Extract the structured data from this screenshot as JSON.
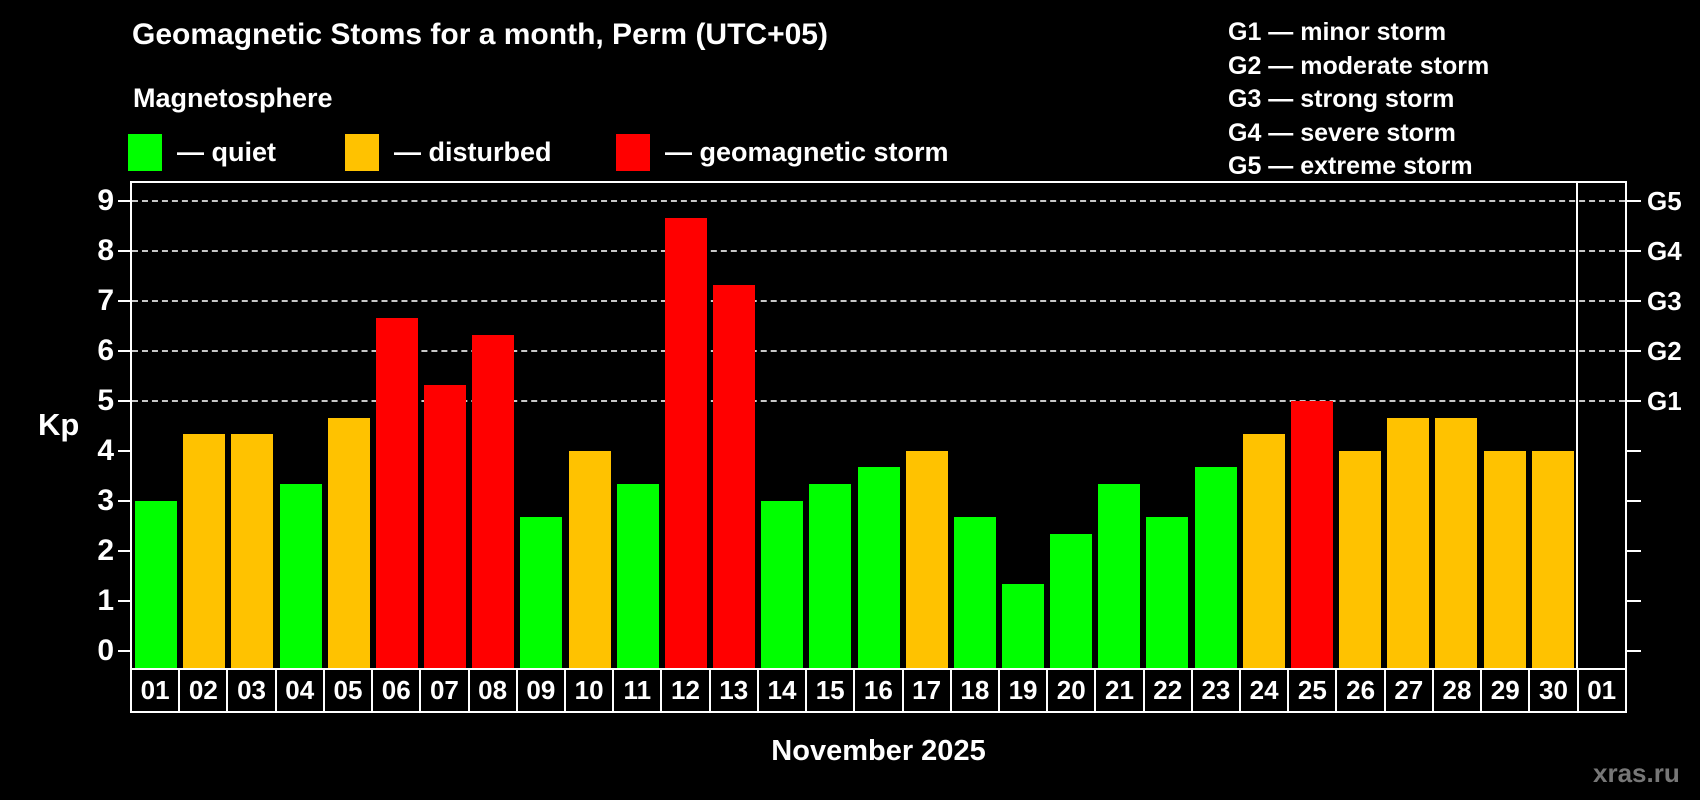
{
  "header": {
    "title": "Geomagnetic Stoms for a month, Perm (UTC+05)",
    "subtitle": "Magnetosphere"
  },
  "legend": {
    "items": [
      {
        "name": "quiet",
        "label": "— quiet",
        "color": "#00ff00"
      },
      {
        "name": "disturbed",
        "label": "— disturbed",
        "color": "#ffc200"
      },
      {
        "name": "storm",
        "label": "— geomagnetic storm",
        "color": "#ff0000"
      }
    ]
  },
  "g_scale_legend": [
    "G1 — minor storm",
    "G2 — moderate storm",
    "G3 — strong storm",
    "G4 — severe storm",
    "G5 — extreme storm"
  ],
  "watermark": "xras.ru",
  "colors": {
    "background": "#000000",
    "text": "#ffffff",
    "grid": "#c8c8c8",
    "quiet": "#00ff00",
    "disturbed": "#ffc200",
    "storm": "#ff0000",
    "watermark": "#777777"
  },
  "chart_data": {
    "type": "bar",
    "title": "Geomagnetic Stoms for a month, Perm (UTC+05)",
    "xlabel": "November 2025",
    "ylabel": "Kp",
    "ylim": [
      -0.35,
      9.37
    ],
    "yticks": [
      0,
      1,
      2,
      3,
      4,
      5,
      6,
      7,
      8,
      9
    ],
    "gridline_levels": [
      5,
      6,
      7,
      8,
      9
    ],
    "grid": true,
    "legend_position": "top-left",
    "right_axis_labels": [
      {
        "kp": 5,
        "label": "G1"
      },
      {
        "kp": 6,
        "label": "G2"
      },
      {
        "kp": 7,
        "label": "G3"
      },
      {
        "kp": 8,
        "label": "G4"
      },
      {
        "kp": 9,
        "label": "G5"
      }
    ],
    "categories": [
      "01",
      "02",
      "03",
      "04",
      "05",
      "06",
      "07",
      "08",
      "09",
      "10",
      "11",
      "12",
      "13",
      "14",
      "15",
      "16",
      "17",
      "18",
      "19",
      "20",
      "21",
      "22",
      "23",
      "24",
      "25",
      "26",
      "27",
      "28",
      "29",
      "30",
      "01"
    ],
    "values": [
      3.0,
      4.33,
      4.33,
      3.33,
      4.67,
      6.67,
      5.33,
      6.33,
      2.67,
      4.0,
      3.33,
      8.67,
      7.33,
      3.0,
      3.33,
      3.67,
      4.0,
      2.67,
      1.33,
      2.33,
      3.33,
      2.67,
      3.67,
      4.33,
      5.0,
      4.0,
      4.67,
      4.67,
      4.0,
      4.0,
      null
    ],
    "statuses": [
      "quiet",
      "disturbed",
      "disturbed",
      "quiet",
      "disturbed",
      "storm",
      "storm",
      "storm",
      "quiet",
      "disturbed",
      "quiet",
      "storm",
      "storm",
      "quiet",
      "quiet",
      "quiet",
      "disturbed",
      "quiet",
      "quiet",
      "quiet",
      "quiet",
      "quiet",
      "quiet",
      "disturbed",
      "storm",
      "disturbed",
      "disturbed",
      "disturbed",
      "disturbed",
      "disturbed",
      null
    ]
  }
}
